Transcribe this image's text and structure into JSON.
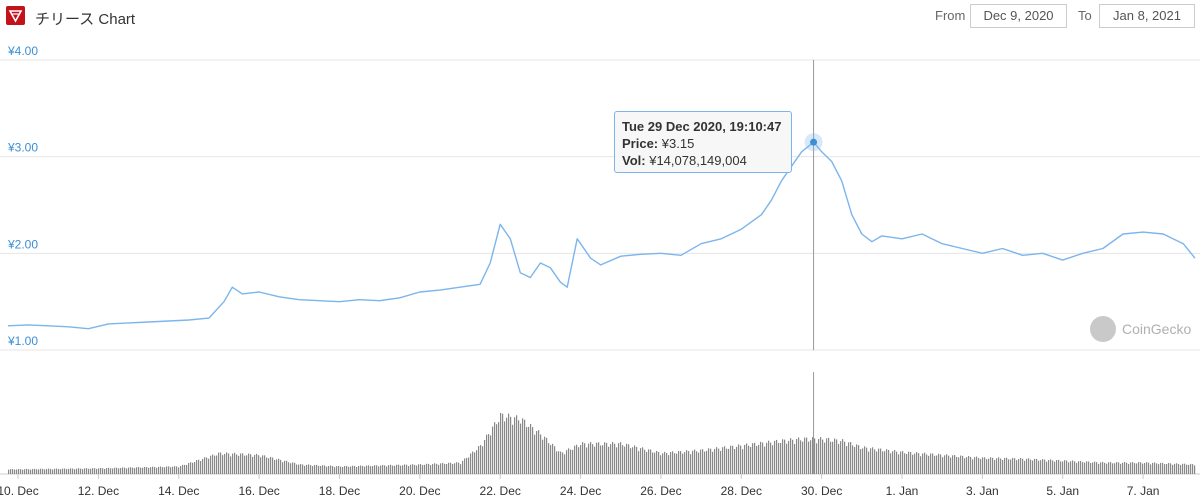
{
  "header": {
    "title": "チリース Chart",
    "from_label": "From",
    "from_value": "Dec 9, 2020",
    "to_label": "To",
    "to_value": "Jan 8, 2021"
  },
  "tooltip": {
    "date": "Tue 29 Dec 2020, 19:10:47",
    "price_label": "Price:",
    "price_value": "¥3.15",
    "vol_label": "Vol:",
    "vol_value": "¥14,078,149,004"
  },
  "watermark": "CoinGecko",
  "colors": {
    "line": "#7cb5ec",
    "volume": "#888888",
    "grid": "#e6e6e6",
    "axis_text": "#3a8fd6",
    "brand": "#c4121c"
  },
  "chart_data": {
    "type": "line",
    "title": "チリース Chart",
    "y_ticks": [
      "¥1.00",
      "¥2.00",
      "¥3.00",
      "¥4.00"
    ],
    "ylim": [
      1,
      4
    ],
    "x_ticks": [
      "10. Dec",
      "12. Dec",
      "14. Dec",
      "16. Dec",
      "18. Dec",
      "20. Dec",
      "22. Dec",
      "24. Dec",
      "26. Dec",
      "28. Dec",
      "30. Dec",
      "1. Jan",
      "3. Jan",
      "5. Jan",
      "7. Jan"
    ],
    "x_tick_dates": [
      "2020-12-10",
      "2020-12-12",
      "2020-12-14",
      "2020-12-16",
      "2020-12-18",
      "2020-12-20",
      "2020-12-22",
      "2020-12-24",
      "2020-12-26",
      "2020-12-28",
      "2020-12-30",
      "2021-01-01",
      "2021-01-03",
      "2021-01-05",
      "2021-01-07"
    ],
    "xlim": [
      "2020-12-09 18:00",
      "2021-01-08 07:00"
    ],
    "grid": true,
    "price_series": {
      "name": "Price",
      "points": [
        [
          "2020-12-09 18:00",
          1.25
        ],
        [
          "2020-12-10 06:00",
          1.26
        ],
        [
          "2020-12-10 18:00",
          1.25
        ],
        [
          "2020-12-11 06:00",
          1.24
        ],
        [
          "2020-12-11 18:00",
          1.22
        ],
        [
          "2020-12-12 06:00",
          1.27
        ],
        [
          "2020-12-12 18:00",
          1.28
        ],
        [
          "2020-12-13 06:00",
          1.29
        ],
        [
          "2020-12-13 18:00",
          1.3
        ],
        [
          "2020-12-14 06:00",
          1.31
        ],
        [
          "2020-12-14 18:00",
          1.33
        ],
        [
          "2020-12-15 03:00",
          1.5
        ],
        [
          "2020-12-15 08:00",
          1.65
        ],
        [
          "2020-12-15 14:00",
          1.58
        ],
        [
          "2020-12-16 00:00",
          1.6
        ],
        [
          "2020-12-16 12:00",
          1.55
        ],
        [
          "2020-12-17 00:00",
          1.52
        ],
        [
          "2020-12-17 12:00",
          1.51
        ],
        [
          "2020-12-18 00:00",
          1.5
        ],
        [
          "2020-12-18 12:00",
          1.52
        ],
        [
          "2020-12-19 00:00",
          1.51
        ],
        [
          "2020-12-19 12:00",
          1.54
        ],
        [
          "2020-12-20 00:00",
          1.6
        ],
        [
          "2020-12-20 12:00",
          1.62
        ],
        [
          "2020-12-21 00:00",
          1.65
        ],
        [
          "2020-12-21 12:00",
          1.68
        ],
        [
          "2020-12-21 18:00",
          1.9
        ],
        [
          "2020-12-22 00:00",
          2.3
        ],
        [
          "2020-12-22 06:00",
          2.15
        ],
        [
          "2020-12-22 12:00",
          1.8
        ],
        [
          "2020-12-22 18:00",
          1.75
        ],
        [
          "2020-12-23 00:00",
          1.9
        ],
        [
          "2020-12-23 06:00",
          1.85
        ],
        [
          "2020-12-23 12:00",
          1.7
        ],
        [
          "2020-12-23 16:00",
          1.65
        ],
        [
          "2020-12-23 22:00",
          2.15
        ],
        [
          "2020-12-24 06:00",
          1.95
        ],
        [
          "2020-12-24 12:00",
          1.88
        ],
        [
          "2020-12-25 00:00",
          1.97
        ],
        [
          "2020-12-25 12:00",
          1.99
        ],
        [
          "2020-12-26 00:00",
          2.0
        ],
        [
          "2020-12-26 12:00",
          1.98
        ],
        [
          "2020-12-27 00:00",
          2.1
        ],
        [
          "2020-12-27 12:00",
          2.15
        ],
        [
          "2020-12-28 00:00",
          2.25
        ],
        [
          "2020-12-28 12:00",
          2.4
        ],
        [
          "2020-12-28 18:00",
          2.55
        ],
        [
          "2020-12-29 00:00",
          2.75
        ],
        [
          "2020-12-29 06:00",
          2.9
        ],
        [
          "2020-12-29 12:00",
          3.05
        ],
        [
          "2020-12-29 19:10",
          3.15
        ],
        [
          "2020-12-30 00:00",
          3.05
        ],
        [
          "2020-12-30 06:00",
          2.95
        ],
        [
          "2020-12-30 12:00",
          2.75
        ],
        [
          "2020-12-30 18:00",
          2.4
        ],
        [
          "2020-12-31 00:00",
          2.2
        ],
        [
          "2020-12-31 06:00",
          2.12
        ],
        [
          "2020-12-31 12:00",
          2.18
        ],
        [
          "2021-01-01 00:00",
          2.15
        ],
        [
          "2021-01-01 12:00",
          2.2
        ],
        [
          "2021-01-02 00:00",
          2.1
        ],
        [
          "2021-01-02 12:00",
          2.05
        ],
        [
          "2021-01-03 00:00",
          2.0
        ],
        [
          "2021-01-03 12:00",
          2.05
        ],
        [
          "2021-01-04 00:00",
          1.98
        ],
        [
          "2021-01-04 12:00",
          2.0
        ],
        [
          "2021-01-05 00:00",
          1.93
        ],
        [
          "2021-01-05 12:00",
          2.0
        ],
        [
          "2021-01-06 00:00",
          2.05
        ],
        [
          "2021-01-06 12:00",
          2.2
        ],
        [
          "2021-01-07 00:00",
          2.22
        ],
        [
          "2021-01-07 12:00",
          2.2
        ],
        [
          "2021-01-08 00:00",
          2.1
        ],
        [
          "2021-01-08 07:00",
          1.95
        ]
      ]
    },
    "volume_series": {
      "name": "Vol",
      "points": [
        [
          "2020-12-10 00:00",
          0.05
        ],
        [
          "2020-12-12 00:00",
          0.06
        ],
        [
          "2020-12-14 00:00",
          0.08
        ],
        [
          "2020-12-15 00:00",
          0.22
        ],
        [
          "2020-12-16 00:00",
          0.2
        ],
        [
          "2020-12-17 00:00",
          0.1
        ],
        [
          "2020-12-18 00:00",
          0.08
        ],
        [
          "2020-12-19 00:00",
          0.09
        ],
        [
          "2020-12-20 00:00",
          0.1
        ],
        [
          "2020-12-21 00:00",
          0.12
        ],
        [
          "2020-12-21 12:00",
          0.3
        ],
        [
          "2020-12-22 00:00",
          0.62
        ],
        [
          "2020-12-22 12:00",
          0.58
        ],
        [
          "2020-12-23 00:00",
          0.42
        ],
        [
          "2020-12-23 12:00",
          0.22
        ],
        [
          "2020-12-24 00:00",
          0.32
        ],
        [
          "2020-12-25 00:00",
          0.32
        ],
        [
          "2020-12-26 00:00",
          0.22
        ],
        [
          "2020-12-27 00:00",
          0.25
        ],
        [
          "2020-12-28 00:00",
          0.3
        ],
        [
          "2020-12-29 00:00",
          0.35
        ],
        [
          "2020-12-29 12:00",
          0.37
        ],
        [
          "2020-12-30 00:00",
          0.37
        ],
        [
          "2020-12-30 12:00",
          0.35
        ],
        [
          "2020-12-31 00:00",
          0.28
        ],
        [
          "2021-01-01 00:00",
          0.23
        ],
        [
          "2021-01-02 00:00",
          0.2
        ],
        [
          "2021-01-03 00:00",
          0.17
        ],
        [
          "2021-01-04 00:00",
          0.16
        ],
        [
          "2021-01-05 00:00",
          0.14
        ],
        [
          "2021-01-06 00:00",
          0.12
        ],
        [
          "2021-01-07 00:00",
          0.12
        ],
        [
          "2021-01-08 07:00",
          0.1
        ]
      ]
    },
    "crosshair": "2020-12-29 19:10"
  }
}
